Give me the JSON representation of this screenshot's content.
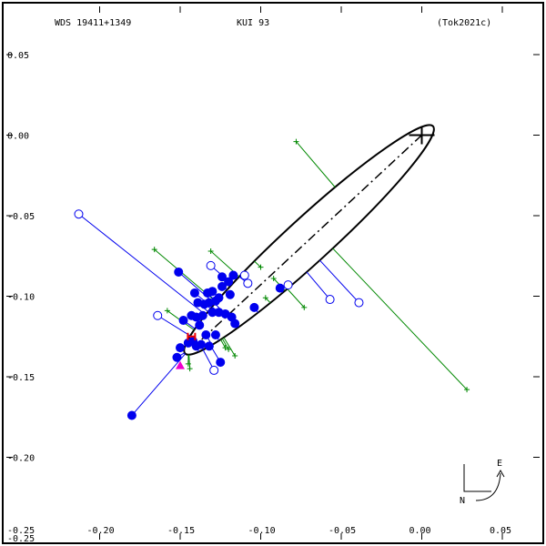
{
  "header": {
    "wds": "WDS 19411+1349",
    "name": "KUI  93",
    "ref": "(Tok2021c)"
  },
  "compass": {
    "east": "E",
    "north": "N"
  },
  "chart_data": {
    "type": "scatter",
    "title": "",
    "xlabel": "",
    "ylabel": "",
    "xlim": [
      -0.25,
      0.075
    ],
    "ylim": [
      -0.25,
      0.075
    ],
    "x_ticks": [
      {
        "value": -0.2,
        "label": "-0.20"
      },
      {
        "value": -0.15,
        "label": "-0.15"
      },
      {
        "value": -0.1,
        "label": "-0.10"
      },
      {
        "value": -0.05,
        "label": "-0.05"
      },
      {
        "value": 0.0,
        "label": "0.00"
      },
      {
        "value": 0.05,
        "label": "0.05"
      }
    ],
    "y_ticks": [
      {
        "value": 0.05,
        "label": "0.05"
      },
      {
        "value": 0.0,
        "label": "0.00"
      },
      {
        "value": -0.05,
        "label": "-0.05"
      },
      {
        "value": -0.1,
        "label": "-0.10"
      },
      {
        "value": -0.15,
        "label": "-0.15"
      },
      {
        "value": -0.2,
        "label": "-0.20"
      }
    ],
    "corner_labels": {
      "x_min": "-0.25",
      "y_min": "-0.25"
    },
    "colors": {
      "axis": "#000000",
      "orbit": "#000000",
      "filled": "#0000ee",
      "open": "#0000ee",
      "interf": "#008800",
      "magenta": "#ee00cc",
      "red": "#ee0000"
    },
    "primary": {
      "x": 0.0,
      "y": 0.0
    },
    "orbit": {
      "center": [
        -0.07,
        -0.065
      ],
      "a": 0.1044,
      "b": 0.0139,
      "angle_deg": 42.5
    },
    "line_of_nodes": [
      [
        0.0,
        0.0
      ],
      [
        -0.14,
        -0.13
      ]
    ],
    "filled_points": [
      [
        -0.18,
        -0.174
      ],
      [
        -0.151,
        -0.085
      ],
      [
        -0.152,
        -0.138
      ],
      [
        -0.15,
        -0.132
      ],
      [
        -0.145,
        -0.129
      ],
      [
        -0.142,
        -0.128
      ],
      [
        -0.14,
        -0.131
      ],
      [
        -0.148,
        -0.115
      ],
      [
        -0.143,
        -0.112
      ],
      [
        -0.14,
        -0.113
      ],
      [
        -0.141,
        -0.098
      ],
      [
        -0.139,
        -0.104
      ],
      [
        -0.135,
        -0.105
      ],
      [
        -0.133,
        -0.098
      ],
      [
        -0.13,
        -0.097
      ],
      [
        -0.132,
        -0.104
      ],
      [
        -0.128,
        -0.103
      ],
      [
        -0.126,
        -0.101
      ],
      [
        -0.124,
        -0.094
      ],
      [
        -0.12,
        -0.091
      ],
      [
        -0.117,
        -0.087
      ],
      [
        -0.124,
        -0.088
      ],
      [
        -0.122,
        -0.111
      ],
      [
        -0.118,
        -0.113
      ],
      [
        -0.116,
        -0.117
      ],
      [
        -0.136,
        -0.112
      ],
      [
        -0.138,
        -0.118
      ],
      [
        -0.137,
        -0.13
      ],
      [
        -0.132,
        -0.131
      ],
      [
        -0.128,
        -0.124
      ],
      [
        -0.125,
        -0.141
      ],
      [
        -0.104,
        -0.107
      ],
      [
        -0.088,
        -0.095
      ],
      [
        -0.134,
        -0.124
      ],
      [
        -0.13,
        -0.11
      ],
      [
        -0.119,
        -0.099
      ],
      [
        -0.126,
        -0.11
      ]
    ],
    "open_points": [
      [
        -0.213,
        -0.049
      ],
      [
        -0.164,
        -0.112
      ],
      [
        -0.131,
        -0.081
      ],
      [
        -0.11,
        -0.087
      ],
      [
        -0.108,
        -0.092
      ],
      [
        -0.083,
        -0.093
      ],
      [
        -0.129,
        -0.146
      ],
      [
        -0.057,
        -0.102
      ],
      [
        -0.039,
        -0.104
      ]
    ],
    "interferometric_points": [
      [
        -0.166,
        -0.071
      ],
      [
        -0.131,
        -0.072
      ],
      [
        -0.078,
        -0.004
      ],
      [
        -0.1,
        -0.082
      ],
      [
        -0.073,
        -0.107
      ],
      [
        0.028,
        -0.158
      ],
      [
        -0.158,
        -0.109
      ],
      [
        -0.145,
        -0.142
      ],
      [
        -0.144,
        -0.145
      ],
      [
        -0.12,
        -0.133
      ],
      [
        -0.116,
        -0.137
      ],
      [
        -0.097,
        -0.101
      ],
      [
        -0.092,
        -0.089
      ],
      [
        -0.122,
        -0.132
      ]
    ],
    "triangle_point": [
      -0.15,
      -0.143
    ],
    "red_point": [
      -0.143,
      -0.125
    ]
  }
}
